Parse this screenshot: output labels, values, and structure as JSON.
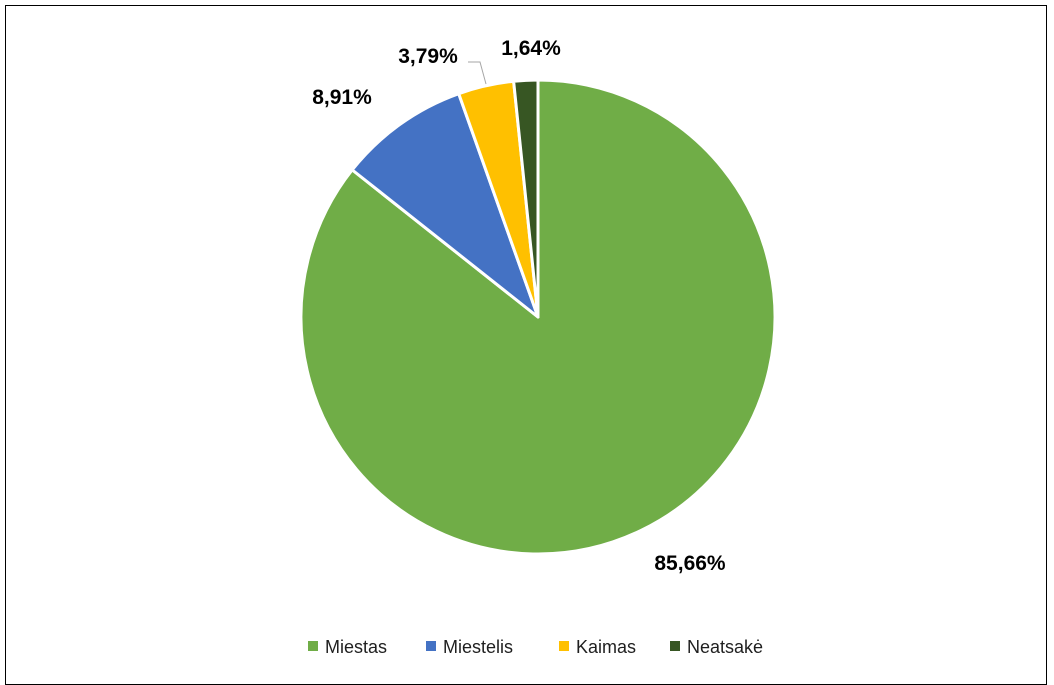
{
  "chart_data": {
    "type": "pie",
    "title": "",
    "categories": [
      "Miestas",
      "Miestelis",
      "Kaimas",
      "Neatsakė"
    ],
    "values": [
      85.66,
      8.91,
      3.79,
      1.64
    ],
    "labels": [
      "85,66%",
      "8,91%",
      "3,79%",
      "1,64%"
    ],
    "colors": [
      "#70ad47",
      "#4472c4",
      "#ffc000",
      "#375623"
    ],
    "start_angle": "12 o'clock",
    "direction": "clockwise",
    "legend": {
      "position": "bottom",
      "items": [
        "Miestas",
        "Miestelis",
        "Kaimas",
        "Neatsakė"
      ]
    }
  }
}
